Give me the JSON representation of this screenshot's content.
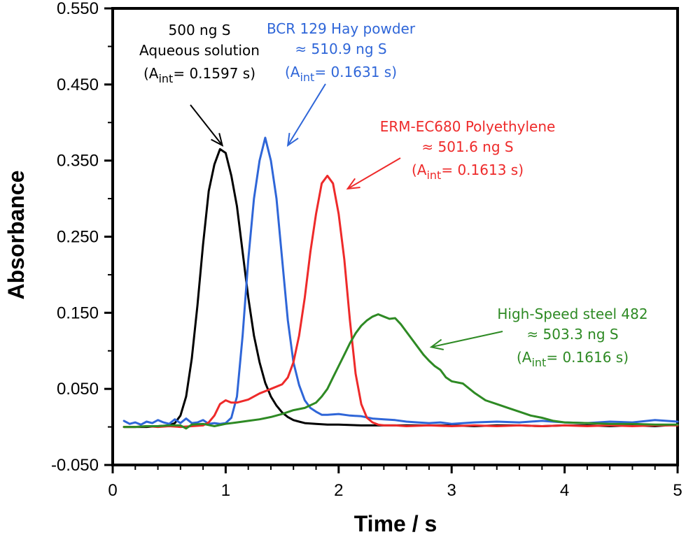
{
  "chart_data": {
    "type": "line",
    "xlabel": "Time / s",
    "ylabel": "Absorbance",
    "xlim": [
      0,
      5
    ],
    "ylim": [
      -0.05,
      0.55
    ],
    "x_ticks": [
      "0",
      "1",
      "2",
      "3",
      "4",
      "5"
    ],
    "y_ticks": [
      "0.550",
      "0.450",
      "0.350",
      "0.250",
      "0.150",
      "0.050",
      "-0.050"
    ],
    "y_tick_values": [
      0.55,
      0.45,
      0.35,
      0.25,
      0.15,
      0.05,
      -0.05
    ],
    "x_tick_values": [
      0,
      1,
      2,
      3,
      4,
      5
    ],
    "series": [
      {
        "name": "500 ng S Aqueous solution",
        "color": "#000000",
        "x": [
          0.1,
          0.2,
          0.3,
          0.4,
          0.5,
          0.55,
          0.6,
          0.65,
          0.7,
          0.75,
          0.8,
          0.85,
          0.9,
          0.95,
          1.0,
          1.05,
          1.1,
          1.15,
          1.2,
          1.25,
          1.3,
          1.35,
          1.4,
          1.45,
          1.5,
          1.55,
          1.6,
          1.65,
          1.7,
          1.8,
          1.9,
          2.0,
          2.2,
          2.4,
          2.6,
          2.8,
          3.0,
          3.2,
          3.4,
          3.6,
          3.8,
          4.0,
          4.2,
          4.4,
          4.6,
          4.8,
          4.9,
          5.0
        ],
        "y": [
          0.0,
          0.0,
          0.0,
          0.001,
          0.002,
          0.005,
          0.015,
          0.04,
          0.09,
          0.16,
          0.24,
          0.31,
          0.345,
          0.365,
          0.36,
          0.33,
          0.29,
          0.23,
          0.17,
          0.12,
          0.085,
          0.058,
          0.04,
          0.028,
          0.019,
          0.013,
          0.009,
          0.007,
          0.005,
          0.004,
          0.003,
          0.003,
          0.002,
          0.002,
          0.002,
          0.002,
          0.002,
          0.001,
          0.002,
          0.002,
          0.001,
          0.002,
          0.002,
          0.001,
          0.002,
          0.001,
          0.002,
          0.003
        ]
      },
      {
        "name": "BCR 129 Hay powder",
        "color": "#2f66d8",
        "x": [
          0.1,
          0.15,
          0.2,
          0.25,
          0.3,
          0.35,
          0.4,
          0.45,
          0.5,
          0.55,
          0.6,
          0.65,
          0.7,
          0.75,
          0.8,
          0.85,
          0.9,
          0.95,
          1.0,
          1.05,
          1.1,
          1.15,
          1.2,
          1.25,
          1.3,
          1.35,
          1.4,
          1.45,
          1.5,
          1.55,
          1.6,
          1.65,
          1.7,
          1.75,
          1.8,
          1.85,
          1.9,
          2.0,
          2.1,
          2.2,
          2.3,
          2.4,
          2.5,
          2.6,
          2.7,
          2.8,
          2.9,
          3.0,
          3.2,
          3.4,
          3.6,
          3.8,
          4.0,
          4.2,
          4.4,
          4.6,
          4.8,
          5.0
        ],
        "y": [
          0.008,
          0.004,
          0.006,
          0.003,
          0.007,
          0.005,
          0.009,
          0.006,
          0.004,
          0.01,
          0.005,
          0.011,
          0.005,
          0.006,
          0.009,
          0.004,
          0.005,
          0.004,
          0.005,
          0.012,
          0.04,
          0.12,
          0.22,
          0.3,
          0.35,
          0.38,
          0.35,
          0.3,
          0.22,
          0.14,
          0.085,
          0.055,
          0.035,
          0.025,
          0.02,
          0.016,
          0.016,
          0.017,
          0.015,
          0.014,
          0.011,
          0.01,
          0.009,
          0.007,
          0.006,
          0.005,
          0.006,
          0.004,
          0.006,
          0.007,
          0.006,
          0.008,
          0.006,
          0.005,
          0.007,
          0.006,
          0.009,
          0.007
        ]
      },
      {
        "name": "ERM-EC680 Polyethylene",
        "color": "#ee2a2a",
        "x": [
          0.1,
          0.2,
          0.3,
          0.4,
          0.5,
          0.6,
          0.7,
          0.8,
          0.85,
          0.9,
          0.95,
          1.0,
          1.05,
          1.1,
          1.2,
          1.3,
          1.4,
          1.5,
          1.55,
          1.6,
          1.65,
          1.7,
          1.75,
          1.8,
          1.85,
          1.9,
          1.95,
          2.0,
          2.05,
          2.1,
          2.15,
          2.2,
          2.25,
          2.3,
          2.35,
          2.4,
          2.5,
          2.6,
          2.8,
          3.0,
          3.2,
          3.4,
          3.6,
          3.8,
          4.0,
          4.2,
          4.4,
          4.6,
          4.8,
          5.0
        ],
        "y": [
          0.0,
          0.0,
          0.001,
          0.0,
          0.001,
          0.0,
          0.001,
          0.002,
          0.006,
          0.015,
          0.03,
          0.035,
          0.032,
          0.032,
          0.036,
          0.044,
          0.05,
          0.056,
          0.065,
          0.085,
          0.12,
          0.17,
          0.23,
          0.28,
          0.32,
          0.33,
          0.32,
          0.28,
          0.22,
          0.14,
          0.07,
          0.03,
          0.012,
          0.006,
          0.003,
          0.002,
          0.002,
          0.001,
          0.002,
          0.001,
          0.002,
          0.001,
          0.002,
          0.001,
          0.002,
          0.001,
          0.002,
          0.001,
          0.002,
          0.002
        ]
      },
      {
        "name": "High-Speed steel 482",
        "color": "#2e8a24",
        "x": [
          0.1,
          0.2,
          0.3,
          0.4,
          0.5,
          0.6,
          0.65,
          0.7,
          0.8,
          0.9,
          1.0,
          1.1,
          1.2,
          1.3,
          1.4,
          1.5,
          1.6,
          1.7,
          1.8,
          1.85,
          1.9,
          1.95,
          2.0,
          2.05,
          2.1,
          2.15,
          2.2,
          2.25,
          2.3,
          2.35,
          2.4,
          2.45,
          2.5,
          2.55,
          2.6,
          2.65,
          2.7,
          2.75,
          2.8,
          2.85,
          2.9,
          2.95,
          3.0,
          3.1,
          3.2,
          3.3,
          3.4,
          3.5,
          3.6,
          3.7,
          3.8,
          3.9,
          4.0,
          4.2,
          4.4,
          4.6,
          4.8,
          5.0
        ],
        "y": [
          0.0,
          0.0,
          0.001,
          0.001,
          0.002,
          0.002,
          -0.002,
          0.003,
          0.004,
          0.001,
          0.004,
          0.006,
          0.008,
          0.01,
          0.013,
          0.017,
          0.022,
          0.025,
          0.032,
          0.04,
          0.05,
          0.065,
          0.08,
          0.095,
          0.11,
          0.123,
          0.133,
          0.14,
          0.145,
          0.148,
          0.145,
          0.142,
          0.143,
          0.135,
          0.125,
          0.115,
          0.105,
          0.095,
          0.087,
          0.08,
          0.075,
          0.065,
          0.06,
          0.057,
          0.045,
          0.035,
          0.03,
          0.025,
          0.02,
          0.015,
          0.012,
          0.008,
          0.006,
          0.005,
          0.004,
          0.004,
          0.003,
          0.003
        ]
      }
    ],
    "annotations": [
      {
        "lines": [
          "500 ng S",
          "Aqueous solution"
        ],
        "aint_prefix": "(A",
        "aint_sub": "int",
        "aint_value": "= 0.1597 s)",
        "color": "#000000",
        "arrow_target": [
          0.97,
          0.37
        ]
      },
      {
        "lines": [
          "BCR 129 Hay powder",
          "≈ 510.9 ng S"
        ],
        "aint_prefix": "(A",
        "aint_sub": "int",
        "aint_value": "= 0.1631 s)",
        "color": "#2f66d8",
        "arrow_target": [
          1.55,
          0.37
        ]
      },
      {
        "lines": [
          "ERM-EC680 Polyethylene",
          "≈ 501.6 ng S"
        ],
        "aint_prefix": "(A",
        "aint_sub": "int",
        "aint_value": "= 0.1613 s)",
        "color": "#ee2a2a",
        "arrow_target": [
          2.08,
          0.313
        ]
      },
      {
        "lines": [
          "High-Speed steel 482",
          "≈ 503.3 ng S"
        ],
        "aint_prefix": "(A",
        "aint_sub": "int",
        "aint_value": "= 0.1616 s)",
        "color": "#2e8a24",
        "arrow_target": [
          2.82,
          0.105
        ]
      }
    ]
  }
}
